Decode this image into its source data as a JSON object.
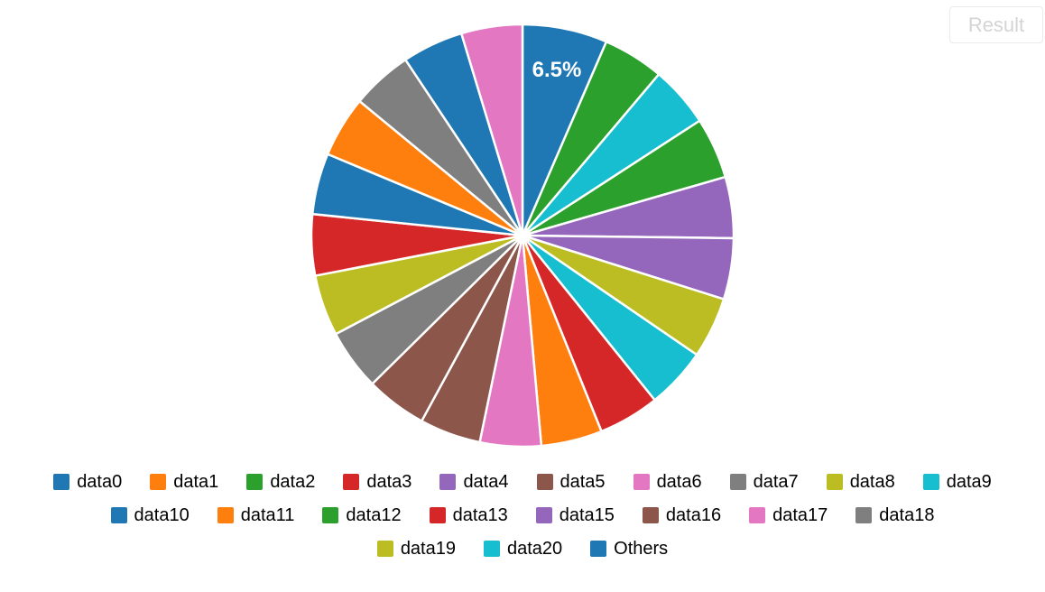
{
  "result_button": {
    "label": "Result"
  },
  "chart_data": {
    "type": "pie",
    "title": "",
    "start_angle_deg": -90,
    "direction": "clockwise",
    "slice_border_color": "#ffffff",
    "data_label_style": {
      "color": "#ffffff",
      "font_size_px": 24,
      "bold": true,
      "radial_position": 0.8
    },
    "slices": [
      {
        "color": "#1f77b4",
        "percent": 6.5,
        "label": "6.5%"
      },
      {
        "color": "#2ca02c",
        "percent": 4.675,
        "label": ""
      },
      {
        "color": "#17becf",
        "percent": 4.675,
        "label": ""
      },
      {
        "color": "#2ca02c",
        "percent": 4.675,
        "label": ""
      },
      {
        "color": "#9467bd",
        "percent": 4.675,
        "label": ""
      },
      {
        "color": "#9467bd",
        "percent": 4.675,
        "label": ""
      },
      {
        "color": "#bcbd22",
        "percent": 4.675,
        "label": ""
      },
      {
        "color": "#17becf",
        "percent": 4.675,
        "label": ""
      },
      {
        "color": "#d62728",
        "percent": 4.675,
        "label": ""
      },
      {
        "color": "#ff7f0e",
        "percent": 4.675,
        "label": ""
      },
      {
        "color": "#e377c2",
        "percent": 4.675,
        "label": ""
      },
      {
        "color": "#8c564b",
        "percent": 4.675,
        "label": ""
      },
      {
        "color": "#8c564b",
        "percent": 4.675,
        "label": ""
      },
      {
        "color": "#7f7f7f",
        "percent": 4.675,
        "label": ""
      },
      {
        "color": "#bcbd22",
        "percent": 4.675,
        "label": ""
      },
      {
        "color": "#d62728",
        "percent": 4.675,
        "label": ""
      },
      {
        "color": "#1f77b4",
        "percent": 4.675,
        "label": ""
      },
      {
        "color": "#ff7f0e",
        "percent": 4.675,
        "label": ""
      },
      {
        "color": "#7f7f7f",
        "percent": 4.675,
        "label": ""
      },
      {
        "color": "#1f77b4",
        "percent": 4.675,
        "label": ""
      },
      {
        "color": "#e377c2",
        "percent": 4.675,
        "label": ""
      }
    ],
    "legend_position": "bottom",
    "legend_rows": [
      [
        {
          "label": "data0",
          "color": "#1f77b4"
        },
        {
          "label": "data1",
          "color": "#ff7f0e"
        },
        {
          "label": "data2",
          "color": "#2ca02c"
        },
        {
          "label": "data3",
          "color": "#d62728"
        },
        {
          "label": "data4",
          "color": "#9467bd"
        },
        {
          "label": "data5",
          "color": "#8c564b"
        },
        {
          "label": "data6",
          "color": "#e377c2"
        },
        {
          "label": "data7",
          "color": "#7f7f7f"
        },
        {
          "label": "data8",
          "color": "#bcbd22"
        },
        {
          "label": "data9",
          "color": "#17becf"
        }
      ],
      [
        {
          "label": "data10",
          "color": "#1f77b4"
        },
        {
          "label": "data11",
          "color": "#ff7f0e"
        },
        {
          "label": "data12",
          "color": "#2ca02c"
        },
        {
          "label": "data13",
          "color": "#d62728"
        },
        {
          "label": "data15",
          "color": "#9467bd"
        },
        {
          "label": "data16",
          "color": "#8c564b"
        },
        {
          "label": "data17",
          "color": "#e377c2"
        },
        {
          "label": "data18",
          "color": "#7f7f7f"
        }
      ],
      [
        {
          "label": "data19",
          "color": "#bcbd22"
        },
        {
          "label": "data20",
          "color": "#17becf"
        },
        {
          "label": "Others",
          "color": "#1f77b4"
        }
      ]
    ]
  }
}
